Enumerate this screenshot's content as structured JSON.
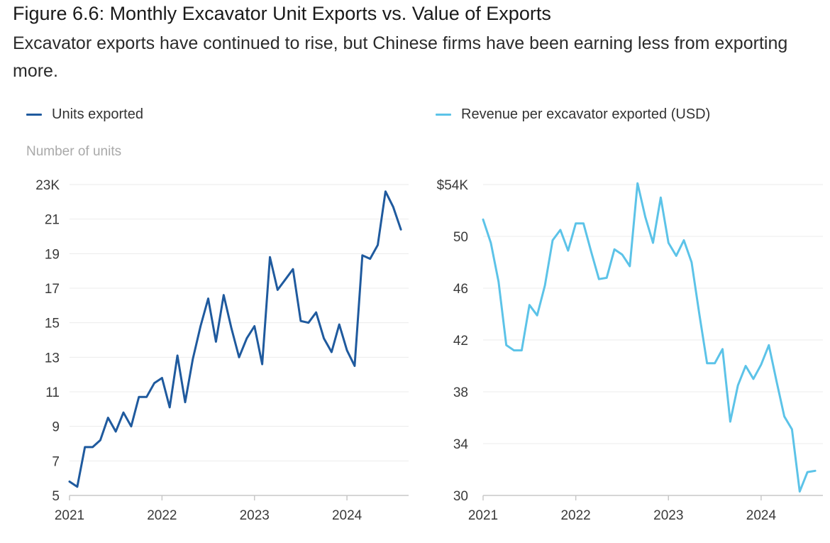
{
  "title": "Figure 6.6: Monthly Excavator Unit Exports vs. Value of Exports",
  "subtitle": "Excavator exports have continued to rise, but Chinese firms have been earning less from exporting more.",
  "left_legend": "Units exported",
  "right_legend": "Revenue per excavator exported (USD)",
  "left_axis_title": "Number of units",
  "colors": {
    "units": "#1f5a9e",
    "revenue": "#5cc3e8",
    "grid": "#ebebeb",
    "axis": "#c8c8c8"
  },
  "chart_data": [
    {
      "type": "line",
      "title": "Units exported",
      "ylabel": "Number of units",
      "ylim": [
        5,
        23
      ],
      "yticks": [
        5,
        7,
        9,
        11,
        13,
        15,
        17,
        19,
        21,
        23
      ],
      "ytick_labels": [
        "5",
        "7",
        "9",
        "11",
        "13",
        "15",
        "17",
        "19",
        "21",
        "23K"
      ],
      "xlim": [
        2021,
        2024.6667
      ],
      "xticks": [
        2021,
        2022,
        2023,
        2024
      ],
      "xtick_labels": [
        "2021",
        "2022",
        "2023",
        "2024"
      ],
      "series": [
        {
          "name": "Units exported",
          "x": [
            2021.0,
            2021.0833,
            2021.1667,
            2021.25,
            2021.3333,
            2021.4167,
            2021.5,
            2021.5833,
            2021.6667,
            2021.75,
            2021.8333,
            2021.9167,
            2022.0,
            2022.0833,
            2022.1667,
            2022.25,
            2022.3333,
            2022.4167,
            2022.5,
            2022.5833,
            2022.6667,
            2022.75,
            2022.8333,
            2022.9167,
            2023.0,
            2023.0833,
            2023.1667,
            2023.25,
            2023.3333,
            2023.4167,
            2023.5,
            2023.5833,
            2023.6667,
            2023.75,
            2023.8333,
            2023.9167,
            2024.0,
            2024.0833,
            2024.1667,
            2024.25,
            2024.3333,
            2024.4167,
            2024.5,
            2024.5833
          ],
          "values": [
            5.8,
            5.5,
            7.8,
            7.8,
            8.2,
            9.5,
            8.7,
            9.8,
            9.0,
            10.7,
            10.7,
            11.5,
            11.8,
            10.1,
            13.1,
            10.4,
            12.9,
            14.8,
            16.4,
            13.9,
            16.6,
            14.7,
            13.0,
            14.1,
            14.8,
            12.6,
            18.8,
            16.9,
            17.5,
            18.1,
            15.1,
            15.0,
            15.6,
            14.1,
            13.3,
            14.9,
            13.4,
            12.5,
            18.9,
            18.7,
            19.5,
            22.6,
            21.7,
            20.4
          ]
        }
      ]
    },
    {
      "type": "line",
      "title": "Revenue per excavator exported (USD)",
      "ylabel": "",
      "ylim": [
        30,
        54
      ],
      "yticks": [
        30,
        34,
        38,
        42,
        46,
        50,
        54
      ],
      "ytick_labels": [
        "30",
        "34",
        "38",
        "42",
        "46",
        "50",
        "$54K"
      ],
      "xlim": [
        2021,
        2024.6667
      ],
      "xticks": [
        2021,
        2022,
        2023,
        2024
      ],
      "xtick_labels": [
        "2021",
        "2022",
        "2023",
        "2024"
      ],
      "series": [
        {
          "name": "Revenue per excavator exported (USD)",
          "x": [
            2021.0,
            2021.0833,
            2021.1667,
            2021.25,
            2021.3333,
            2021.4167,
            2021.5,
            2021.5833,
            2021.6667,
            2021.75,
            2021.8333,
            2021.9167,
            2022.0,
            2022.0833,
            2022.1667,
            2022.25,
            2022.3333,
            2022.4167,
            2022.5,
            2022.5833,
            2022.6667,
            2022.75,
            2022.8333,
            2022.9167,
            2023.0,
            2023.0833,
            2023.1667,
            2023.25,
            2023.3333,
            2023.4167,
            2023.5,
            2023.5833,
            2023.6667,
            2023.75,
            2023.8333,
            2023.9167,
            2024.0,
            2024.0833,
            2024.1667,
            2024.25,
            2024.3333,
            2024.4167,
            2024.5,
            2024.5833
          ],
          "values": [
            51.3,
            49.5,
            46.5,
            41.6,
            41.2,
            41.2,
            44.7,
            43.9,
            46.2,
            49.7,
            50.5,
            48.9,
            51.0,
            51.0,
            48.8,
            46.7,
            46.8,
            49.0,
            48.6,
            47.7,
            54.1,
            51.5,
            49.5,
            53.0,
            49.5,
            48.5,
            49.7,
            48.0,
            44.0,
            40.2,
            40.2,
            41.3,
            35.7,
            38.5,
            40.0,
            39.0,
            40.1,
            41.6,
            38.8,
            36.1,
            35.1,
            30.3,
            31.8,
            31.9
          ]
        }
      ]
    }
  ]
}
